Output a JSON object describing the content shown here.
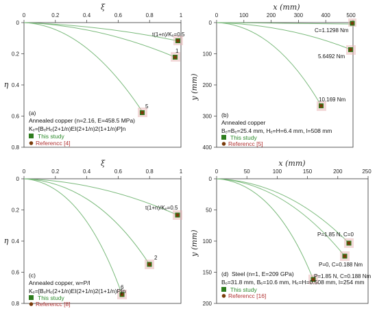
{
  "colors": {
    "curve": "#79b97a",
    "study": "#2e7d1e",
    "ref": "#7a3b0a",
    "ref_halo": "#e8b4b4",
    "study_text": "#2a8a2a",
    "ref_text": "#b03030"
  },
  "chart_data": [
    {
      "type": "line",
      "xlabel": "ξ",
      "ylabel": "η",
      "xlim": [
        0,
        1
      ],
      "ylim": [
        0,
        0.8
      ],
      "y_inverted": true,
      "xticks": [
        "0",
        "0.2",
        "0.4",
        "0.6",
        "0.8",
        "1"
      ],
      "yticks": [
        "0",
        "0.2",
        "0.4",
        "0.6",
        "0.8"
      ],
      "series": [
        {
          "end": [
            0.99,
            0.12
          ],
          "label": "t(1+n)/Kₑ=0.5",
          "label_pos": [
            0.77,
            0.085
          ]
        },
        {
          "end": [
            0.97,
            0.22
          ],
          "label": "1",
          "label_pos": [
            0.965,
            0.19
          ]
        },
        {
          "end": [
            0.76,
            0.58
          ],
          "label": "5",
          "label_pos": [
            0.775,
            0.54
          ]
        }
      ],
      "text": [
        "(a)",
        "Annealed copper (n=2.16, E=458.5 MPa)",
        "Kₑ=[BₑHₑ(2+1/n)EI(2+1/n)2(1+1/n)P]n"
      ],
      "legend": [
        "This study",
        "Referencc [4]"
      ]
    },
    {
      "type": "line",
      "xlabel": "x (mm)",
      "ylabel": "y (mm)",
      "xlim": [
        0,
        500
      ],
      "ylim": [
        0,
        400
      ],
      "y_inverted": true,
      "xticks": [
        "0",
        "100",
        "200",
        "300",
        "400",
        "500"
      ],
      "yticks": [
        "0",
        "100",
        "200",
        "300",
        "400"
      ],
      "series": [
        {
          "end": [
            505,
            5
          ],
          "label": "C=1.1298 Nm"
        },
        {
          "end": [
            500,
            87
          ],
          "label": "5.6492 Nm"
        },
        {
          "end": [
            393,
            270
          ],
          "label": "10.169 Nm"
        }
      ],
      "text": [
        "(b)",
        "Annealed copper",
        "Bₑ=Bₑ=25.4 mm,  Hₑ=H=6.4 mm,  l=508 mm"
      ],
      "legend": [
        "This study",
        "Referencc [5]"
      ]
    },
    {
      "type": "line",
      "xlabel": "ξ",
      "ylabel": "η",
      "xlim": [
        0,
        1
      ],
      "ylim": [
        0,
        0.8
      ],
      "y_inverted": true,
      "xticks": [
        "0",
        "0.2",
        "0.4",
        "0.6",
        "0.8",
        "1"
      ],
      "yticks": [
        "0",
        "0.2",
        "0.4",
        "0.6",
        "0.8"
      ],
      "series": [
        {
          "end": [
            0.98,
            0.235
          ],
          "label": "t(1+n)/Kₑ=0.5"
        },
        {
          "end": [
            0.8,
            0.55
          ],
          "label": "2"
        },
        {
          "end": [
            0.63,
            0.745
          ],
          "label": "6"
        }
      ],
      "text": [
        "(c)",
        "Annealed copper,  w=P/l",
        "Kₑ=[BₑHₑ(2+1/n)EI(2+1/n)2(1+1/n)P]n"
      ],
      "legend": [
        "This study",
        "Referencc [8]"
      ]
    },
    {
      "type": "line",
      "xlabel": "x (mm)",
      "ylabel": "y (mm)",
      "xlim": [
        0,
        250
      ],
      "ylim": [
        0,
        200
      ],
      "y_inverted": true,
      "xticks": [
        "0",
        "50",
        "100",
        "150",
        "200",
        "250"
      ],
      "yticks": [
        "0",
        "50",
        "100",
        "150",
        "200"
      ],
      "series": [
        {
          "end": [
            219,
            104
          ],
          "label": "P=1.85 N, C=0"
        },
        {
          "end": [
            212,
            124
          ],
          "label": "P=0, C=0.188 Nm"
        },
        {
          "end": [
            160,
            161
          ],
          "label": "P=1.85 N, C=0.188 Nm"
        }
      ],
      "text": [
        "(d)",
        "Steel (n=1, E=209 GPa)",
        "Bₑ=31.8 mm, Bₑ=10.6 mm, Hₑ=H=0.508 mm, l=254 mm"
      ],
      "legend": [
        "This study",
        "Referencc [16]"
      ]
    }
  ],
  "panels": {
    "a": {
      "xlabel": "ξ",
      "ylabel": "η",
      "ticks_x": [
        "0",
        "0.2",
        "0.4",
        "0.6",
        "0.8",
        "1"
      ],
      "ticks_y": [
        "0",
        "0.2",
        "0.4",
        "0.6",
        "0.8"
      ],
      "ann1": "t(1+n)/Kₑ=0.5",
      "ann2": "1",
      "ann3": "5",
      "letter": "(a)",
      "line1": "Annealed copper (n=2.16, E=458.5 MPa)",
      "line2": "Kₑ=[BₑHₑ(2+1/n)EI(2+1/n)2(1+1/n)P]n",
      "legend1": "This study",
      "legend2": "Referencc [4]"
    },
    "b": {
      "xlabel": "x (mm)",
      "ylabel": "y (mm)",
      "ticks_x": [
        "0",
        "100",
        "200",
        "300",
        "400",
        "500"
      ],
      "ticks_y": [
        "0",
        "100",
        "200",
        "300",
        "400"
      ],
      "ann1": "C=1.1298 Nm",
      "ann2": "5.6492 Nm",
      "ann3": "10.169 Nm",
      "letter": "(b)",
      "line1": "Annealed copper",
      "line2": "Bₑ=Bₑ=25.4 mm,  Hₑ=H=6.4 mm,  l=508 mm",
      "legend1": "This study",
      "legend2": "Referencc [5]"
    },
    "c": {
      "xlabel": "ξ",
      "ylabel": "η",
      "ticks_x": [
        "0",
        "0.2",
        "0.4",
        "0.6",
        "0.8",
        "1"
      ],
      "ticks_y": [
        "0",
        "0.2",
        "0.4",
        "0.6",
        "0.8"
      ],
      "ann1": "t(1+n)/Kₑ=0.5",
      "ann2": "2",
      "ann3": "6",
      "letter": "(c)",
      "line1": "Annealed copper,  w=P/l",
      "line2": "Kₑ=[BₑHₑ(2+1/n)EI(2+1/n)2(1+1/n)P]n",
      "legend1": "This study",
      "legend2": "Referencc [8]"
    },
    "d": {
      "xlabel": "x (mm)",
      "ylabel": "y (mm)",
      "ticks_x": [
        "0",
        "50",
        "100",
        "150",
        "200",
        "250"
      ],
      "ticks_y": [
        "0",
        "50",
        "100",
        "150",
        "200"
      ],
      "ann1": "P=1.85 N, C=0",
      "ann2": "P=0, C=0.188 Nm",
      "ann3": "P=1.85 N, C=0.188 Nm",
      "letter": "(d)",
      "line1": "Steel (n=1, E=209 GPa)",
      "line2": "Bₑ=31.8 mm, Bₑ=10.6 mm, Hₑ=H=0.508 mm, l=254 mm",
      "legend1": "This study",
      "legend2": "Referencc [16]"
    }
  }
}
